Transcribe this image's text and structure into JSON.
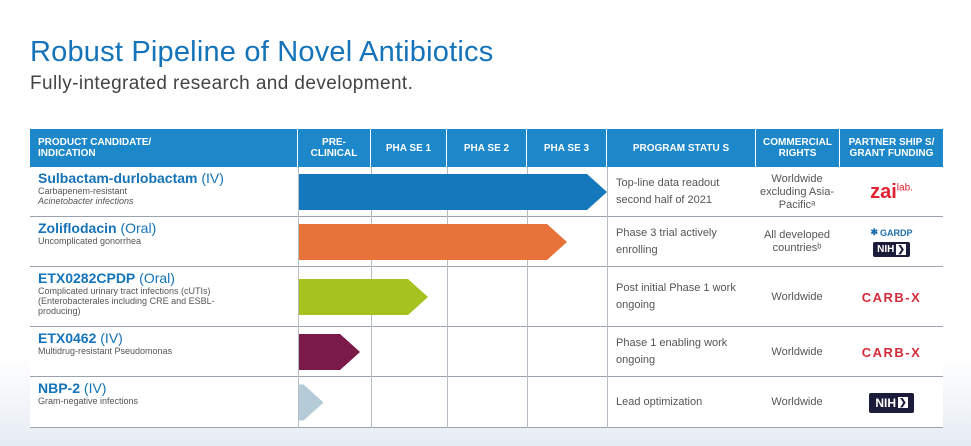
{
  "title": "Robust Pipeline of Novel Antibiotics",
  "subtitle": "Fully-integrated research and development.",
  "headers": {
    "candidate": "PRODUCT CANDIDATE/\nINDICATION",
    "preclinical": "PRE-\nCLINICAL",
    "phase1": "PHA SE 1",
    "phase2": "PHA SE 2",
    "phase3": "PHA SE 3",
    "status": "PROGRAM STATU S",
    "rights": "COMMERCIAL\nRIGHTS",
    "partner": "PARTNER SHIP S/\nGRANT FUNDING"
  },
  "rows": [
    {
      "name": "Sulbactam-durlobactam",
      "route": " (IV)",
      "indication_1": "Carbapenem-resistant",
      "indication_2": "Acinetobacter infections",
      "progress_phases": 4.0,
      "color": "#1478bd",
      "status": "Top-line data readout second half of 2021",
      "rights": "Worldwide excluding Asia-Pacificᵃ",
      "partner": "zai-lab"
    },
    {
      "name": "Zoliflodacin",
      "route": " (Oral)",
      "indication_1": "Uncomplicated gonorrhea",
      "indication_2": "",
      "progress_phases": 3.5,
      "color": "#e8733a",
      "status": "Phase 3 trial actively enrolling",
      "rights": "All developed countriesᵇ",
      "partner": "gardp-nih"
    },
    {
      "name": "ETX0282CPDP",
      "route": " (Oral)",
      "indication_1": "Complicated urinary tract infections (cUTIs) (Enterobacterales including CRE and ESBL-producing)",
      "indication_2": "",
      "progress_phases": 1.75,
      "color": "#a5c21f",
      "status": "Post initial Phase 1 work ongoing",
      "rights": "Worldwide",
      "partner": "carbx"
    },
    {
      "name": "ETX0462",
      "route": " (IV)",
      "indication_1": "Multidrug-resistant Pseudomonas",
      "indication_2": "",
      "progress_phases": 0.85,
      "color": "#7a1a48",
      "status": "Phase 1 enabling work ongoing",
      "rights": "Worldwide",
      "partner": "carbx"
    },
    {
      "name": "NBP-2",
      "route": " (IV)",
      "indication_1": "Gram-negative infections",
      "indication_2": "",
      "progress_phases": 0.35,
      "color": "#b6cbd8",
      "status": "Lead optimization",
      "rights": "Worldwide",
      "partner": "nih"
    }
  ],
  "logos": {
    "zai": "zai",
    "zai_lab": "lab.",
    "gardp": "GARDP",
    "nih": "NIH",
    "carbx": "CARB-X"
  }
}
